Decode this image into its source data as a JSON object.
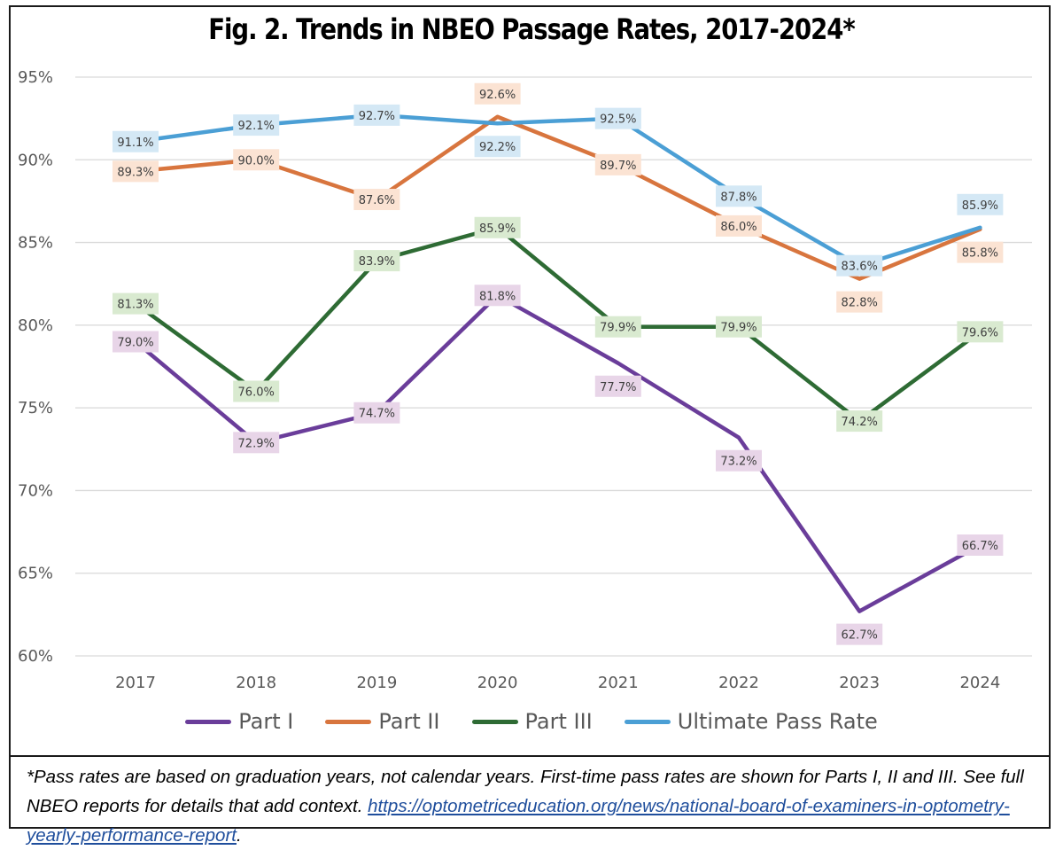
{
  "chart_data": {
    "type": "line",
    "title": "Fig. 2. Trends in NBEO Passage Rates, 2017-2024*",
    "xlabel": "",
    "ylabel": "",
    "categories": [
      "2017",
      "2018",
      "2019",
      "2020",
      "2021",
      "2022",
      "2023",
      "2024"
    ],
    "ylim": [
      60,
      95
    ],
    "yticks": [
      60,
      65,
      70,
      75,
      80,
      85,
      90,
      95
    ],
    "ytick_labels": [
      "60%",
      "65%",
      "70%",
      "75%",
      "80%",
      "85%",
      "90%",
      "95%"
    ],
    "grid": true,
    "legend_position": "bottom",
    "series": [
      {
        "name": "Part I",
        "color": "#6a3d9a",
        "label_bg": "#e8d5e8",
        "values": [
          79.0,
          72.9,
          74.7,
          81.8,
          77.7,
          73.2,
          62.7,
          66.7
        ],
        "labels": [
          "79.0%",
          "72.9%",
          "74.7%",
          "81.8%",
          "77.7%",
          "73.2%",
          "62.7%",
          "66.7%"
        ],
        "label_pos": [
          "center",
          "center",
          "center",
          "center",
          "below",
          "below",
          "below",
          "center"
        ]
      },
      {
        "name": "Part II",
        "color": "#d8753e",
        "label_bg": "#fbe3d3",
        "values": [
          89.3,
          90.0,
          87.6,
          92.6,
          89.7,
          86.0,
          82.8,
          85.8
        ],
        "labels": [
          "89.3%",
          "90.0%",
          "87.6%",
          "92.6%",
          "89.7%",
          "86.0%",
          "82.8%",
          "85.8%"
        ],
        "label_pos": [
          "center",
          "center",
          "center",
          "above",
          "center",
          "center",
          "below",
          "below"
        ]
      },
      {
        "name": "Part III",
        "color": "#2e6b34",
        "label_bg": "#d9ead0",
        "values": [
          81.3,
          76.0,
          83.9,
          85.9,
          79.9,
          79.9,
          74.2,
          79.6
        ],
        "labels": [
          "81.3%",
          "76.0%",
          "83.9%",
          "85.9%",
          "79.9%",
          "79.9%",
          "74.2%",
          "79.6%"
        ],
        "label_pos": [
          "center",
          "center",
          "center",
          "center",
          "center",
          "center",
          "center",
          "center"
        ]
      },
      {
        "name": "Ultimate Pass Rate",
        "color": "#4b9fd5",
        "label_bg": "#d4e8f5",
        "values": [
          91.1,
          92.1,
          92.7,
          92.2,
          92.5,
          87.8,
          83.6,
          85.9
        ],
        "labels": [
          "91.1%",
          "92.1%",
          "92.7%",
          "92.2%",
          "92.5%",
          "87.8%",
          "83.6%",
          "85.9%"
        ],
        "label_pos": [
          "center",
          "center",
          "center",
          "below",
          "center",
          "center",
          "center",
          "above"
        ]
      }
    ]
  },
  "footnote": {
    "text": "*Pass rates are based on graduation years, not calendar years. First-time pass rates are shown for Parts I, II and III. See full NBEO reports for details that add context. ",
    "link_text": "https://optometriceducation.org/news/national-board-of-examiners-in-optometry-yearly-performance-report",
    "after_link": "."
  }
}
